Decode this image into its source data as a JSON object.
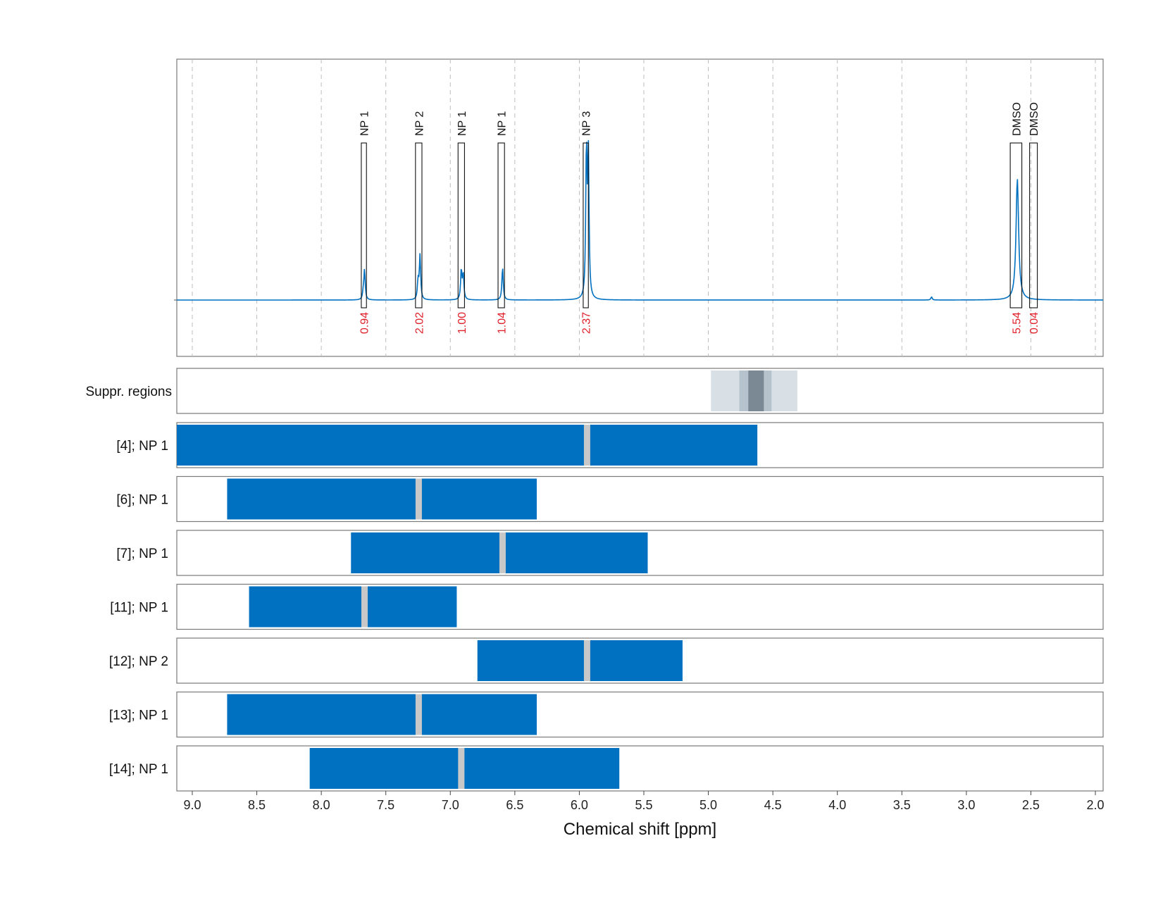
{
  "chart_data": {
    "type": "nmr-spectrum",
    "xlabel": "Chemical shift [ppm]",
    "xlim": [
      9.12,
      1.94
    ],
    "xticks": [
      "9.0",
      "8.5",
      "8.0",
      "7.5",
      "7.0",
      "6.5",
      "6.0",
      "5.5",
      "5.0",
      "4.5",
      "4.0",
      "3.5",
      "3.0",
      "2.5",
      "2.0"
    ],
    "grid": true,
    "colors": {
      "spectrum": "#0070c0",
      "integral": "#e0202a",
      "bar": "#0070c0",
      "bar_marker": "#c8c8c8",
      "suppr_light": "#d8e0e6",
      "suppr_mid": "#b6c2cc",
      "suppr_dark": "#7b8995"
    },
    "spectrum": {
      "baseline": 0,
      "ymax": 1.0,
      "peaks": [
        {
          "center": 7.665,
          "height": 0.19,
          "width": 0.006
        },
        {
          "center": 7.675,
          "height": 0.04,
          "width": 0.006
        },
        {
          "center": 7.235,
          "height": 0.28,
          "width": 0.006
        },
        {
          "center": 7.25,
          "height": 0.12,
          "width": 0.006
        },
        {
          "center": 6.915,
          "height": 0.19,
          "width": 0.006
        },
        {
          "center": 6.9,
          "height": 0.16,
          "width": 0.006
        },
        {
          "center": 6.595,
          "height": 0.21,
          "width": 0.006
        },
        {
          "center": 5.945,
          "height": 0.95,
          "width": 0.006
        },
        {
          "center": 5.93,
          "height": 0.9,
          "width": 0.006
        },
        {
          "center": 2.605,
          "height": 0.77,
          "width": 0.012
        },
        {
          "center": 3.27,
          "height": 0.02,
          "width": 0.006
        }
      ]
    },
    "annotations": [
      {
        "label": "NP 1",
        "integral": "0.94",
        "from": 7.69,
        "to": 7.65
      },
      {
        "label": "NP 2",
        "integral": "2.02",
        "from": 7.27,
        "to": 7.22
      },
      {
        "label": "NP 1",
        "integral": "1.00",
        "from": 6.94,
        "to": 6.89
      },
      {
        "label": "NP 1",
        "integral": "1.04",
        "from": 6.63,
        "to": 6.58
      },
      {
        "label": "NP 3",
        "integral": "2.37",
        "from": 5.97,
        "to": 5.93
      },
      {
        "label": "DMSO",
        "integral": "5.54",
        "from": 2.66,
        "to": 2.57
      },
      {
        "label": "DMSO",
        "integral": "0.04",
        "from": 2.51,
        "to": 2.45
      }
    ],
    "suppressed_regions": {
      "label": "Suppr. regions",
      "bands": [
        {
          "from": 4.98,
          "to": 4.31,
          "level": "light"
        },
        {
          "from": 4.76,
          "to": 4.51,
          "level": "mid"
        },
        {
          "from": 4.69,
          "to": 4.57,
          "level": "dark"
        }
      ]
    },
    "rows": [
      {
        "label": "[4]; NP 1",
        "from": 9.12,
        "to": 4.62,
        "marker": 5.94
      },
      {
        "label": "[6]; NP 1",
        "from": 8.73,
        "to": 6.33,
        "marker": 7.245
      },
      {
        "label": "[7]; NP 1",
        "from": 7.77,
        "to": 5.47,
        "marker": 6.595
      },
      {
        "label": "[11]; NP 1",
        "from": 8.56,
        "to": 6.95,
        "marker": 7.665
      },
      {
        "label": "[12]; NP 2",
        "from": 6.79,
        "to": 5.2,
        "marker": 5.94
      },
      {
        "label": "[13]; NP 1",
        "from": 8.73,
        "to": 6.33,
        "marker": 7.245
      },
      {
        "label": "[14]; NP 1",
        "from": 8.09,
        "to": 5.69,
        "marker": 6.915
      }
    ]
  }
}
